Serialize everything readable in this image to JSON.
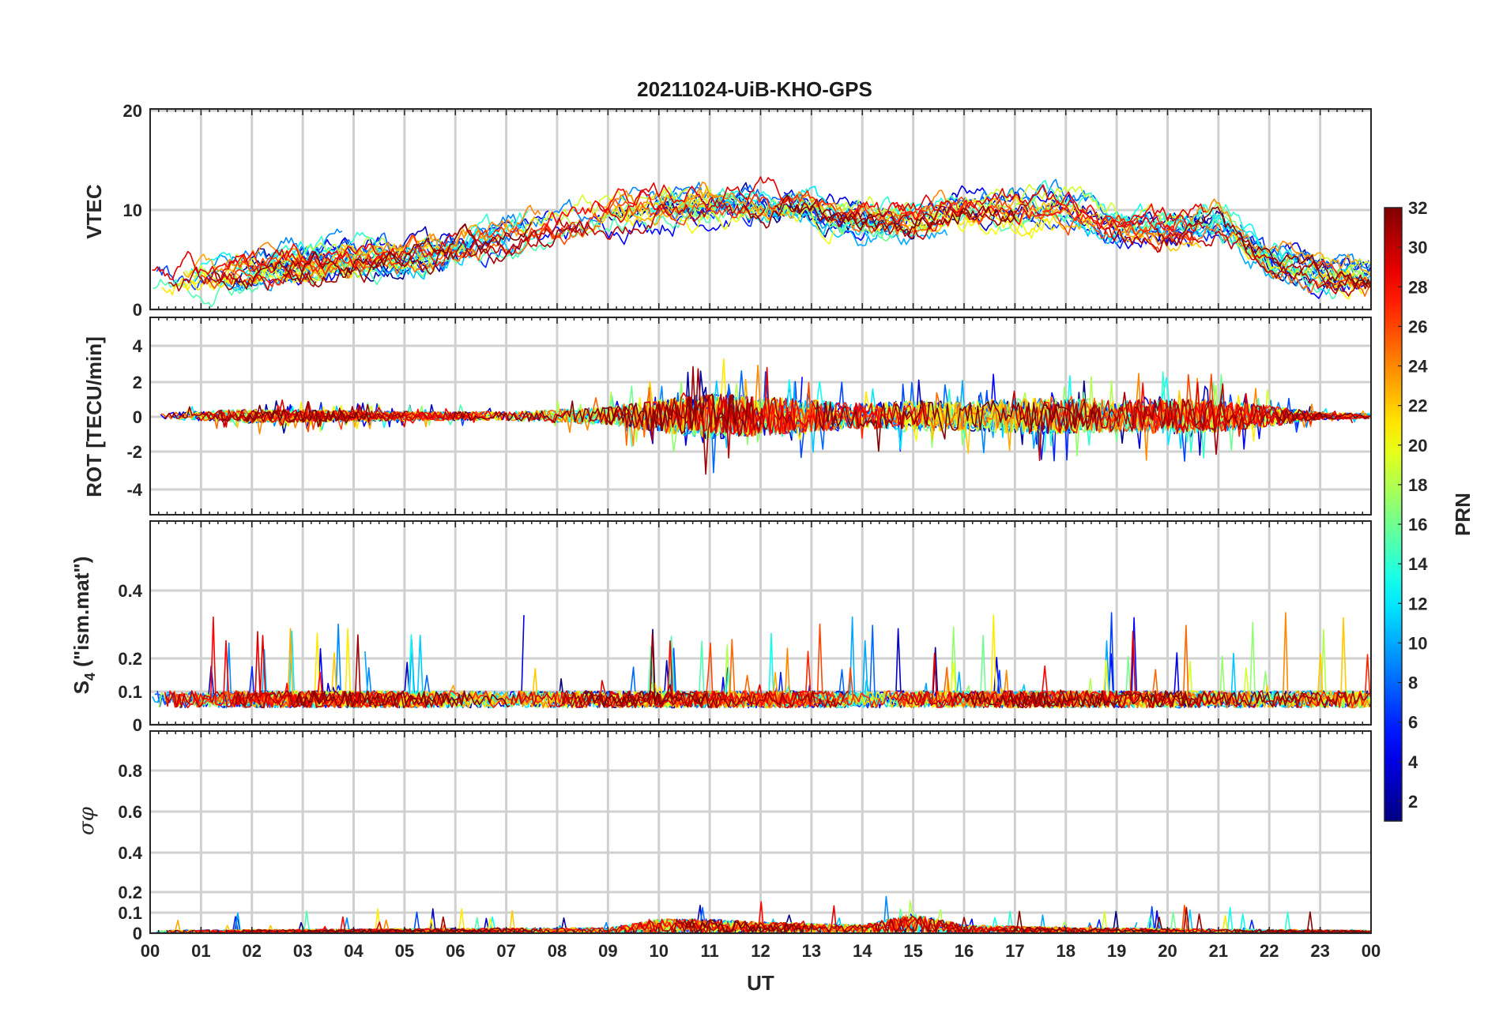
{
  "chart_data": {
    "type": "line",
    "title": "20211024-UiB-KHO-GPS",
    "xlabel": "UT",
    "x_ticks": [
      "00",
      "01",
      "02",
      "03",
      "04",
      "05",
      "06",
      "07",
      "08",
      "09",
      "10",
      "11",
      "12",
      "13",
      "14",
      "15",
      "16",
      "17",
      "18",
      "19",
      "20",
      "21",
      "22",
      "23",
      "00"
    ],
    "xlim": [
      0,
      24
    ],
    "grid": true,
    "colorbar": {
      "label": "PRN",
      "range": [
        1,
        32
      ],
      "ticks": [
        "2",
        "4",
        "6",
        "8",
        "10",
        "12",
        "14",
        "16",
        "18",
        "20",
        "22",
        "24",
        "26",
        "28",
        "30",
        "32"
      ],
      "colormap": "jet"
    },
    "panels": [
      {
        "name": "vtec",
        "ylabel": "VTEC",
        "ylim": [
          0,
          20
        ],
        "yticks": [
          "0",
          "10",
          "20"
        ],
        "activity": [
          [
            0,
            3.2
          ],
          [
            1,
            3.4
          ],
          [
            2,
            4.0
          ],
          [
            3,
            4.6
          ],
          [
            4,
            4.8
          ],
          [
            5,
            5.2
          ],
          [
            6,
            6.0
          ],
          [
            7,
            7.0
          ],
          [
            8,
            8.5
          ],
          [
            9,
            9.5
          ],
          [
            10,
            10.0
          ],
          [
            11,
            10.5
          ],
          [
            12,
            10.5
          ],
          [
            13,
            10.0
          ],
          [
            14,
            9.0
          ],
          [
            15,
            9.0
          ],
          [
            16,
            10.0
          ],
          [
            17,
            9.8
          ],
          [
            18,
            10.0
          ],
          [
            19,
            8.0
          ],
          [
            20,
            8.0
          ],
          [
            21,
            9.0
          ],
          [
            22,
            5.0
          ],
          [
            23,
            3.5
          ],
          [
            24,
            3.0
          ]
        ]
      },
      {
        "name": "rot",
        "ylabel": "ROT [TECU/min]",
        "ylim": [
          -5.5,
          5.5
        ],
        "yticks": [
          "-4",
          "-2",
          "0",
          "2",
          "4"
        ],
        "activity": [
          [
            0,
            0.15
          ],
          [
            2,
            0.4
          ],
          [
            3,
            0.35
          ],
          [
            5,
            0.25
          ],
          [
            7,
            0.25
          ],
          [
            9,
            0.5
          ],
          [
            10,
            0.9
          ],
          [
            11,
            1.3
          ],
          [
            12,
            1.1
          ],
          [
            13,
            0.9
          ],
          [
            14,
            0.7
          ],
          [
            15,
            0.9
          ],
          [
            16,
            0.8
          ],
          [
            17,
            1.0
          ],
          [
            18,
            1.0
          ],
          [
            19,
            0.9
          ],
          [
            20,
            1.0
          ],
          [
            21,
            0.9
          ],
          [
            22,
            0.6
          ],
          [
            23,
            0.2
          ],
          [
            24,
            0.15
          ]
        ]
      },
      {
        "name": "s4",
        "ylabel": "S4 (\"ism.mat\")",
        "ylim": [
          0,
          0.6
        ],
        "yticks": [
          "0",
          "0.1",
          "0.2",
          "0.4"
        ],
        "activity": [
          [
            0,
            0.07
          ],
          [
            6,
            0.07
          ],
          [
            12,
            0.07
          ],
          [
            18,
            0.07
          ],
          [
            24,
            0.07
          ]
        ]
      },
      {
        "name": "sigma_phi",
        "ylabel": "σφ",
        "ylim": [
          0,
          1.0
        ],
        "yticks": [
          "0",
          "0.1",
          "0.2",
          "0.4",
          "0.6",
          "0.8"
        ],
        "activity": [
          [
            0,
            0.01
          ],
          [
            9,
            0.02
          ],
          [
            10,
            0.05
          ],
          [
            11,
            0.05
          ],
          [
            12,
            0.04
          ],
          [
            14,
            0.03
          ],
          [
            15,
            0.07
          ],
          [
            16,
            0.03
          ],
          [
            18,
            0.02
          ],
          [
            24,
            0.01
          ]
        ]
      }
    ]
  }
}
